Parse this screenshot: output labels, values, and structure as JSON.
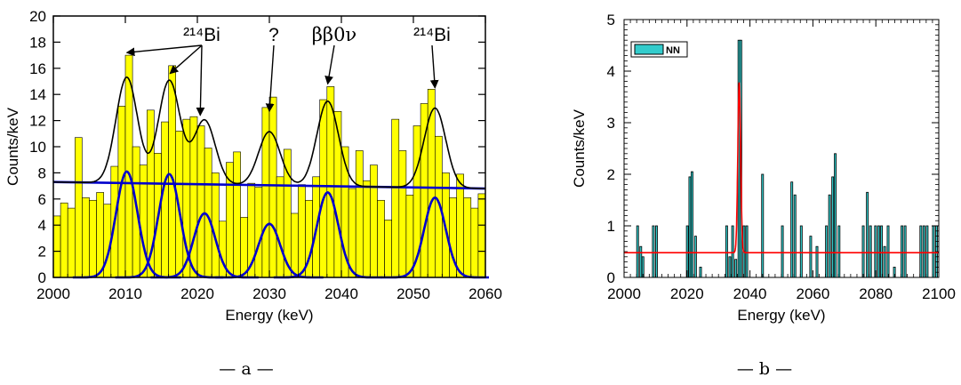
{
  "chart_data": [
    {
      "type": "bar",
      "panel_caption": "— a —",
      "xlabel": "Energy (keV)",
      "ylabel": "Counts/keV",
      "xlim": [
        2000,
        2060
      ],
      "ylim": [
        0,
        20
      ],
      "x_ticks": [
        "2000",
        "2010",
        "2020",
        "2030",
        "2040",
        "2050",
        "2060"
      ],
      "y_ticks": [
        "0",
        "2",
        "4",
        "6",
        "8",
        "10",
        "12",
        "14",
        "16",
        "18",
        "20"
      ],
      "bar_color": "#ffff00",
      "bin_width": 1,
      "x": [
        2000,
        2001,
        2002,
        2003,
        2004,
        2005,
        2006,
        2007,
        2008,
        2009,
        2010,
        2011,
        2012,
        2013,
        2014,
        2015,
        2016,
        2017,
        2018,
        2019,
        2020,
        2021,
        2022,
        2023,
        2024,
        2025,
        2026,
        2027,
        2028,
        2029,
        2030,
        2031,
        2032,
        2033,
        2034,
        2035,
        2036,
        2037,
        2038,
        2039,
        2040,
        2041,
        2042,
        2043,
        2044,
        2045,
        2046,
        2047,
        2048,
        2049,
        2050,
        2051,
        2052,
        2053,
        2054,
        2055,
        2056,
        2057,
        2058,
        2059
      ],
      "values": [
        4.7,
        5.7,
        5.3,
        10.7,
        6.1,
        5.9,
        6.5,
        5.6,
        8.5,
        13.1,
        17.0,
        10.0,
        8.6,
        12.8,
        9.5,
        11.9,
        16.2,
        11.2,
        12.1,
        12.3,
        11.6,
        9.9,
        8.0,
        4.3,
        8.8,
        9.6,
        4.6,
        7.2,
        6.9,
        13.0,
        13.8,
        7.7,
        9.8,
        4.9,
        7.1,
        5.9,
        7.7,
        13.6,
        14.6,
        12.7,
        10.0,
        6.8,
        9.7,
        7.4,
        8.6,
        5.9,
        4.4,
        12.1,
        9.7,
        6.3,
        11.6,
        13.3,
        14.4,
        10.8,
        8.0,
        6.1,
        7.9,
        6.1,
        5.3,
        6.4
      ],
      "annotations": [
        {
          "text": "²¹⁴Bi",
          "targets_x": [
            2010.2,
            2016.2,
            2020.4
          ],
          "targets_y": [
            17.2,
            15.6,
            12.4
          ]
        },
        {
          "text": "?",
          "targets_x": [
            2030.0
          ],
          "targets_y": [
            12.7
          ]
        },
        {
          "text": "ββ0ν",
          "targets_x": [
            2038.1
          ],
          "targets_y": [
            14.8
          ]
        },
        {
          "text": "²¹⁴Bi",
          "targets_x": [
            2053.0
          ],
          "targets_y": [
            14.5
          ]
        }
      ],
      "fit": {
        "background_line": {
          "color": "#0000cc",
          "y_at_xmin": 7.3,
          "y_at_xmax": 6.8
        },
        "peaks": [
          {
            "center": 2010.2,
            "height": 8.1,
            "sigma": 1.5
          },
          {
            "center": 2016.1,
            "height": 7.9,
            "sigma": 1.5
          },
          {
            "center": 2021.0,
            "height": 4.9,
            "sigma": 1.5
          },
          {
            "center": 2030.0,
            "height": 4.1,
            "sigma": 1.5
          },
          {
            "center": 2038.1,
            "height": 6.5,
            "sigma": 1.5
          },
          {
            "center": 2053.0,
            "height": 6.1,
            "sigma": 1.5
          }
        ],
        "peak_color": "#0000cc",
        "total_color": "#000000"
      }
    },
    {
      "type": "bar",
      "panel_caption": "— b —",
      "xlabel": "Energy (keV)",
      "ylabel": "Counts/keV",
      "xlim": [
        2000,
        2100
      ],
      "ylim": [
        0,
        5
      ],
      "x_ticks": [
        "2000",
        "2020",
        "2040",
        "2060",
        "2080",
        "2100"
      ],
      "y_ticks": [
        "0",
        "1",
        "2",
        "3",
        "4",
        "5"
      ],
      "bar_color": "#33cccc",
      "bin_width": 0.6,
      "legend": {
        "label": "NN",
        "position": "top-left"
      },
      "x": [
        2004.0,
        2005.0,
        2005.7,
        2009.0,
        2010.0,
        2019.8,
        2020.6,
        2021.3,
        2022.4,
        2024.0,
        2032.3,
        2033.3,
        2034.2,
        2035.2,
        2036.2,
        2036.8,
        2037.8,
        2038.7,
        2043.7,
        2050.0,
        2053.0,
        2054.0,
        2056.0,
        2059.0,
        2061.0,
        2064.0,
        2065.0,
        2066.0,
        2066.8,
        2068.0,
        2075.7,
        2077.0,
        2078.0,
        2079.6,
        2080.6,
        2081.5,
        2082.5,
        2083.6,
        2085.6,
        2088.0,
        2089.0,
        2094.0,
        2095.0,
        2096.0,
        2098.0,
        2099.0
      ],
      "values": [
        1.0,
        0.6,
        0.4,
        1.0,
        1.0,
        1.0,
        1.95,
        2.05,
        0.8,
        0.2,
        1.0,
        0.4,
        1.0,
        0.35,
        4.6,
        4.6,
        1.0,
        1.0,
        2.0,
        1.0,
        1.85,
        1.6,
        1.0,
        0.8,
        0.6,
        1.0,
        1.6,
        1.95,
        2.4,
        1.0,
        1.0,
        1.65,
        1.0,
        1.0,
        1.0,
        1.0,
        0.6,
        1.0,
        0.2,
        1.0,
        1.0,
        1.0,
        1.0,
        1.0,
        1.0,
        1.0
      ],
      "fit": {
        "color": "#ff0000",
        "background": 0.48,
        "peak": {
          "center": 2036.6,
          "height": 3.3,
          "sigma": 0.45
        }
      }
    }
  ]
}
